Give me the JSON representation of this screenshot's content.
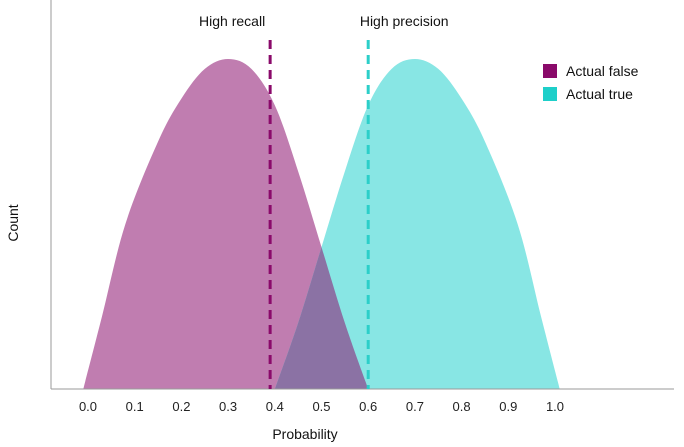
{
  "chart_data": {
    "type": "area",
    "title": "",
    "xlabel": "Probability",
    "ylabel": "Count",
    "xlim": [
      -0.1,
      1.25
    ],
    "ylim": [
      0,
      1
    ],
    "x_ticks": [
      "0.0",
      "0.1",
      "0.2",
      "0.3",
      "0.4",
      "0.5",
      "0.6",
      "0.7",
      "0.8",
      "0.9",
      "1.0"
    ],
    "grid": false,
    "legend_position": "top-right",
    "series": [
      {
        "name": "Actual false",
        "color": "#8a0a6a",
        "fill_color": "#c07db0",
        "points": [
          [
            -0.01,
            0.0
          ],
          [
            0.03,
            0.22
          ],
          [
            0.08,
            0.5
          ],
          [
            0.15,
            0.75
          ],
          [
            0.2,
            0.88
          ],
          [
            0.25,
            0.97
          ],
          [
            0.3,
            1.0
          ],
          [
            0.35,
            0.97
          ],
          [
            0.4,
            0.86
          ],
          [
            0.45,
            0.66
          ],
          [
            0.5,
            0.43
          ],
          [
            0.55,
            0.2
          ],
          [
            0.6,
            0.0
          ]
        ]
      },
      {
        "name": "Actual true",
        "color": "#1ecfc9",
        "fill_color": "#88e6e4",
        "points": [
          [
            0.4,
            0.0
          ],
          [
            0.45,
            0.2
          ],
          [
            0.5,
            0.43
          ],
          [
            0.55,
            0.66
          ],
          [
            0.6,
            0.86
          ],
          [
            0.65,
            0.97
          ],
          [
            0.7,
            1.0
          ],
          [
            0.75,
            0.97
          ],
          [
            0.8,
            0.88
          ],
          [
            0.85,
            0.75
          ],
          [
            0.92,
            0.5
          ],
          [
            0.97,
            0.22
          ],
          [
            1.01,
            0.0
          ]
        ]
      }
    ],
    "overlap_color": "#8b72a4",
    "thresholds": [
      {
        "label": "High recall",
        "x": 0.39,
        "color": "#8a0a6a"
      },
      {
        "label": "High precision",
        "x": 0.6,
        "color": "#2ccfc9"
      }
    ]
  }
}
